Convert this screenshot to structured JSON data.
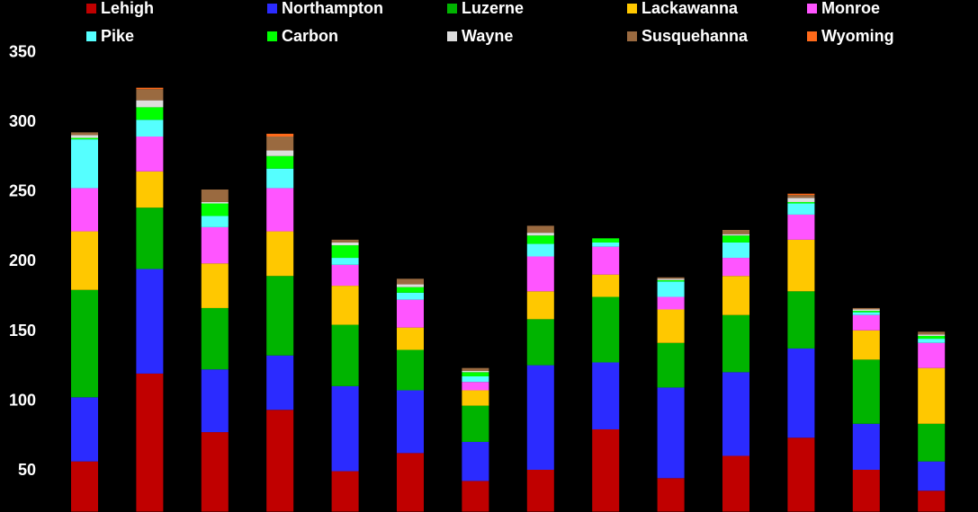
{
  "chart_data": {
    "type": "bar",
    "stacked": true,
    "title": "",
    "xlabel": "",
    "ylabel": "",
    "ylim": [
      20,
      350
    ],
    "y_ticks": [
      50,
      100,
      150,
      200,
      250,
      300,
      350
    ],
    "grid": false,
    "legend_position": "top",
    "categories": [
      "",
      "",
      "",
      "",
      "",
      "",
      "",
      "",
      "",
      "",
      "",
      "",
      "",
      ""
    ],
    "series": [
      {
        "name": "Lehigh",
        "color": "#c00000",
        "values": [
          56,
          119,
          77,
          93,
          49,
          62,
          42,
          50,
          79,
          44,
          60,
          73,
          50,
          35
        ]
      },
      {
        "name": "Northampton",
        "color": "#2b2bff",
        "values": [
          46,
          75,
          45,
          39,
          61,
          45,
          28,
          75,
          48,
          65,
          60,
          64,
          33,
          21
        ]
      },
      {
        "name": "Luzerne",
        "color": "#00b400",
        "values": [
          77,
          44,
          44,
          57,
          44,
          29,
          26,
          33,
          47,
          32,
          41,
          41,
          46,
          27
        ]
      },
      {
        "name": "Lackawanna",
        "color": "#ffc800",
        "values": [
          42,
          26,
          32,
          32,
          28,
          16,
          11,
          20,
          16,
          24,
          28,
          37,
          21,
          40
        ]
      },
      {
        "name": "Monroe",
        "color": "#ff55ff",
        "values": [
          31,
          25,
          26,
          31,
          15,
          20,
          6,
          25,
          20,
          9,
          13,
          18,
          11,
          18
        ]
      },
      {
        "name": "Pike",
        "color": "#55ffff",
        "values": [
          35,
          12,
          8,
          14,
          5,
          5,
          4,
          9,
          3,
          11,
          11,
          8,
          2,
          3
        ]
      },
      {
        "name": "Carbon",
        "color": "#00ff00",
        "values": [
          1,
          9,
          9,
          9,
          9,
          4,
          3,
          6,
          3,
          1,
          5,
          1,
          1,
          2
        ]
      },
      {
        "name": "Wayne",
        "color": "#dddddd",
        "values": [
          2,
          5,
          1,
          4,
          2,
          2,
          1,
          2,
          0,
          1,
          1,
          3,
          1,
          1
        ]
      },
      {
        "name": "Susquehanna",
        "color": "#9a6a40",
        "values": [
          2,
          8,
          9,
          10,
          2,
          4,
          2,
          5,
          0,
          1,
          3,
          2,
          1,
          2
        ]
      },
      {
        "name": "Wyoming",
        "color": "#ff6a1a",
        "values": [
          0,
          1,
          0,
          2,
          0,
          0,
          0,
          0,
          0,
          0,
          0,
          1,
          0,
          0
        ]
      }
    ]
  }
}
